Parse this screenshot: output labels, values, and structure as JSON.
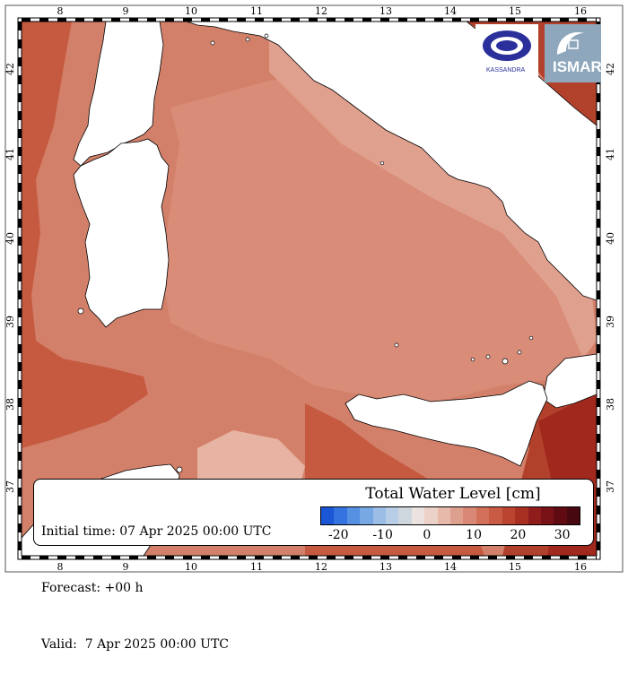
{
  "map": {
    "lon_ticks": [
      "8",
      "9",
      "10",
      "11",
      "12",
      "13",
      "14",
      "15",
      "16"
    ],
    "lat_ticks": [
      "42",
      "41",
      "40",
      "39",
      "38",
      "37"
    ],
    "colors": {
      "sea_base": "#d3806a",
      "sea_central": "#d98c77",
      "sea_light": "#e0a08e",
      "sea_lighter": "#e7b3a3",
      "sea_dark": "#c55a40",
      "sea_darker": "#b2412c",
      "sea_darkest": "#a1281d",
      "land": "#ffffff",
      "coast": "#000000"
    }
  },
  "info": {
    "initial_time": "Initial time: 07 Apr 2025 00:00 UTC",
    "forecast": "Forecast: +00 h",
    "valid": "Valid:  7 Apr 2025 00:00 UTC"
  },
  "legend": {
    "title": "Total Water Level [cm]",
    "ticks": [
      "-20",
      "-10",
      "0",
      "10",
      "20",
      "30"
    ],
    "colors": [
      "#1a56d6",
      "#3574e0",
      "#5590e3",
      "#78a8e3",
      "#9bbde6",
      "#b8cde6",
      "#cfd7de",
      "#ece3e0",
      "#ecd1c8",
      "#e6b9aa",
      "#dea08e",
      "#d88874",
      "#d2705a",
      "#c95b44",
      "#bb4430",
      "#a73023",
      "#8f1d1b",
      "#781216",
      "#600b12",
      "#470810"
    ]
  },
  "logos": {
    "left_text": "KASSANDRA",
    "right_text": "ISMAR"
  }
}
